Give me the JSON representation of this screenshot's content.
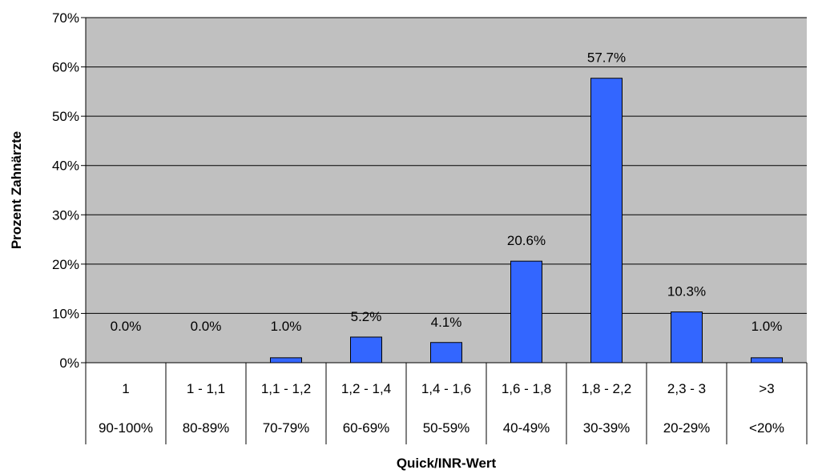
{
  "chart_data": {
    "type": "bar",
    "title": "",
    "xlabel": "Quick/INR-Wert",
    "ylabel": "Prozent Zahnärzte",
    "ylim": [
      0,
      70
    ],
    "yticks": [
      "0%",
      "10%",
      "20%",
      "30%",
      "40%",
      "50%",
      "60%",
      "70%"
    ],
    "ytick_values": [
      0,
      10,
      20,
      30,
      40,
      50,
      60,
      70
    ],
    "categories": [
      "1",
      "1 - 1,1",
      "1,1 - 1,2",
      "1,2 - 1,4",
      "1,4 - 1,6",
      "1,6 - 1,8",
      "1,8 - 2,2",
      "2,3 - 3",
      ">3"
    ],
    "categories_secondary": [
      "90-100%",
      "80-89%",
      "70-79%",
      "60-69%",
      "50-59%",
      "40-49%",
      "30-39%",
      "20-29%",
      "<20%"
    ],
    "values": [
      0.0,
      0.0,
      1.0,
      5.2,
      4.1,
      20.6,
      57.7,
      10.3,
      1.0
    ],
    "data_labels": [
      "0.0%",
      "0.0%",
      "1.0%",
      "5.2%",
      "4.1%",
      "20.6%",
      "57.7%",
      "10.3%",
      "1.0%"
    ],
    "grid": true,
    "colors": {
      "bar": "#3366ff",
      "plot_background": "#c0c0c0",
      "bar_border": "#000000"
    }
  }
}
